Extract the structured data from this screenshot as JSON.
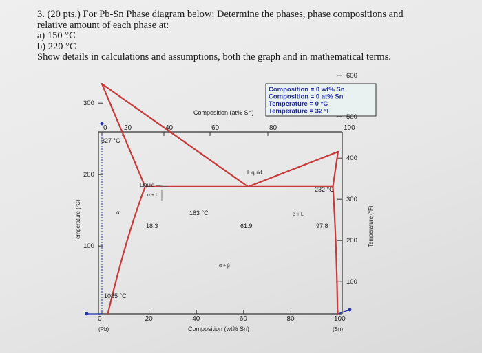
{
  "question": {
    "line1": "3. (20 pts.) For Pb-Sn Phase diagram below: Determine the phases, phase compositions and",
    "line2": "relative amount of each phase at:",
    "part_a": "a) 150 °C",
    "part_b": "b) 220 °C",
    "instructions": "Show details in calculations and assumptions, both the graph and in mathematical terms."
  },
  "readout": {
    "line1": "Composition = 0 wt% Sn",
    "line2": "Composition = 0 at% Sn",
    "line3": "Temperature = 0 °C",
    "line4": "Temperature = 32 °F"
  },
  "chart_data": {
    "type": "phase-diagram",
    "top_axis_label": "Composition (at% Sn)",
    "top_ticks": [
      "0",
      "20",
      "40",
      "60",
      "80",
      "100"
    ],
    "bottom_axis_label": "Composition (wt% Sn)",
    "bottom_ticks": [
      "0",
      "20",
      "40",
      "60",
      "80",
      "100"
    ],
    "bottom_end_labels": [
      "(Pb)",
      "(Sn)"
    ],
    "left_axis_label": "Temperature (°C)",
    "left_ticks": [
      "100",
      "200",
      "300"
    ],
    "right_axis_label": "Temperature (°F)",
    "right_ticks": [
      "100",
      "200",
      "300",
      "400",
      "500",
      "600"
    ],
    "annotations": {
      "pb_melting": "327 °C",
      "sn_melting": "232 °C",
      "eutectic_temp": "183 °C",
      "alpha_max": "18.3",
      "eutectic_comp": "61.9",
      "beta_max": "97.8",
      "cursor_temp": "1085 °C",
      "liquid": "Liquid",
      "alpha_plus_liquid": "Liquid",
      "alpha_plus_liquid_sub": "α + L",
      "alpha": "α",
      "beta_plus_liquid": "β + L",
      "alpha_plus_beta": "α + β"
    },
    "points": {
      "pb_melting": [
        0,
        327
      ],
      "sn_melting": [
        100,
        232
      ],
      "eutectic": [
        61.9,
        183
      ],
      "alpha_eutectic": [
        18.3,
        183
      ],
      "beta_eutectic": [
        97.8,
        183
      ]
    },
    "colors": {
      "lines": "#c73a3a",
      "axes": "#333333",
      "cursor": "#2233aa"
    }
  }
}
